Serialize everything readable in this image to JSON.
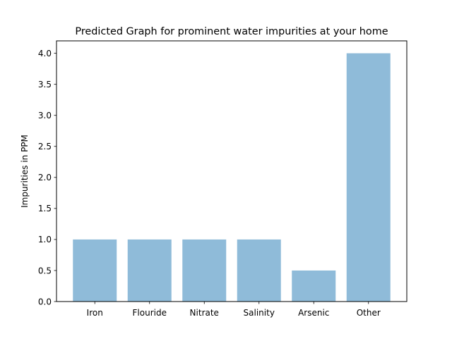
{
  "chart_data": {
    "type": "bar",
    "title": "Predicted Graph for prominent water impurities at your home",
    "xlabel": "",
    "ylabel": "Impurities in PPM",
    "categories": [
      "Iron",
      "Flouride",
      "Nitrate",
      "Salinity",
      "Arsenic",
      "Other"
    ],
    "values": [
      1.0,
      1.0,
      1.0,
      1.0,
      0.5,
      4.0
    ],
    "ylim": [
      0,
      4.2
    ],
    "yticks": [
      0.0,
      0.5,
      1.0,
      1.5,
      2.0,
      2.5,
      3.0,
      3.5,
      4.0
    ],
    "ytick_labels": [
      "0.0",
      "0.5",
      "1.0",
      "1.5",
      "2.0",
      "2.5",
      "3.0",
      "3.5",
      "4.0"
    ],
    "grid": false,
    "bar_color": "#1f77b4",
    "bar_alpha": 0.5
  }
}
